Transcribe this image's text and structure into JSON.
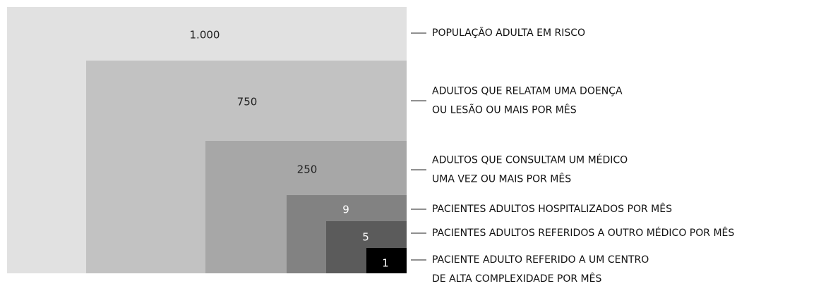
{
  "nodes": [
    {
      "value": "1.000",
      "label": [
        "POPULAÇÃO ADULTA EM RISCO"
      ]
    },
    {
      "value": "750",
      "label": [
        "ADULTOS QUE RELATAM UMA DOENÇA",
        "OU LESÃO OU MAIS POR MÊS"
      ]
    },
    {
      "value": "250",
      "label": [
        "ADULTOS QUE CONSULTAM UM MÉDICO",
        "UMA VEZ OU MAIS POR MÊS"
      ]
    },
    {
      "value": "9",
      "label": [
        "PACIENTES ADULTOS HOSPITALIZADOS POR MÊS"
      ]
    },
    {
      "value": "5",
      "label": [
        "PACIENTES ADULTOS REFERIDOS A OUTRO MÉDICO POR MÊS"
      ]
    },
    {
      "value": "1",
      "label": [
        "PACIENTE ADULTO REFERIDO A UM CENTRO",
        "DE ALTA COMPLEXIDADE POR MÊS"
      ]
    }
  ]
}
